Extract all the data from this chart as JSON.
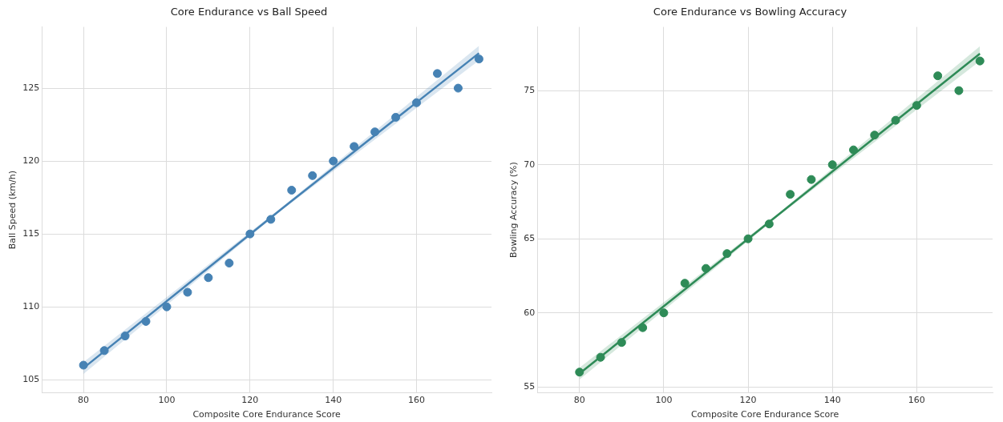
{
  "chart_data": [
    {
      "type": "scatter",
      "title": "Core Endurance vs Ball Speed",
      "xlabel": "Composite Core Endurance Score",
      "ylabel": "Ball Speed (km/h)",
      "xlim": [
        70,
        178
      ],
      "xticks": [
        80,
        100,
        120,
        140,
        160
      ],
      "ylim": [
        104.1,
        129.2
      ],
      "yticks": [
        105,
        110,
        115,
        120,
        125
      ],
      "grid": true,
      "legend": false,
      "series": [
        {
          "type": "scatter",
          "marker": "circle",
          "color": "#4682b4",
          "x": [
            80,
            85,
            90,
            95,
            100,
            105,
            110,
            115,
            120,
            125,
            130,
            135,
            140,
            145,
            150,
            155,
            160,
            165,
            170,
            175
          ],
          "values": [
            106,
            107,
            108,
            109,
            110,
            111,
            112,
            113,
            115,
            116,
            118,
            119,
            120,
            121,
            122,
            123,
            124,
            126,
            125,
            127
          ]
        },
        {
          "type": "line",
          "marker": "none",
          "color": "#4682b4",
          "x": [
            80,
            127.5,
            175
          ],
          "values": [
            105.8,
            116.7,
            127.4
          ],
          "lower": [
            105.4,
            116.6,
            126.9
          ],
          "upper": [
            106.2,
            116.8,
            127.9
          ]
        }
      ]
    },
    {
      "type": "scatter",
      "title": "Core Endurance vs Bowling Accuracy",
      "xlabel": "Composite Core Endurance Score",
      "ylabel": "Bowling Accuracy (%)",
      "xlim": [
        70,
        178
      ],
      "xticks": [
        80,
        100,
        120,
        140,
        160
      ],
      "ylim": [
        54.6,
        79.3
      ],
      "yticks": [
        55,
        60,
        65,
        70,
        75
      ],
      "grid": true,
      "legend": false,
      "series": [
        {
          "type": "scatter",
          "marker": "circle",
          "color": "#2e8b57",
          "x": [
            80,
            85,
            90,
            95,
            100,
            105,
            110,
            115,
            120,
            125,
            130,
            135,
            140,
            145,
            150,
            155,
            160,
            165,
            170,
            175
          ],
          "values": [
            56,
            57,
            58,
            59,
            60,
            62,
            63,
            64,
            65,
            66,
            68,
            69,
            70,
            71,
            72,
            73,
            74,
            76,
            75,
            77
          ]
        },
        {
          "type": "line",
          "marker": "none",
          "color": "#2e8b57",
          "x": [
            80,
            127.5,
            175
          ],
          "values": [
            55.9,
            66.7,
            77.5
          ],
          "lower": [
            55.5,
            66.6,
            77.0
          ],
          "upper": [
            56.3,
            66.8,
            78.0
          ]
        }
      ]
    }
  ]
}
